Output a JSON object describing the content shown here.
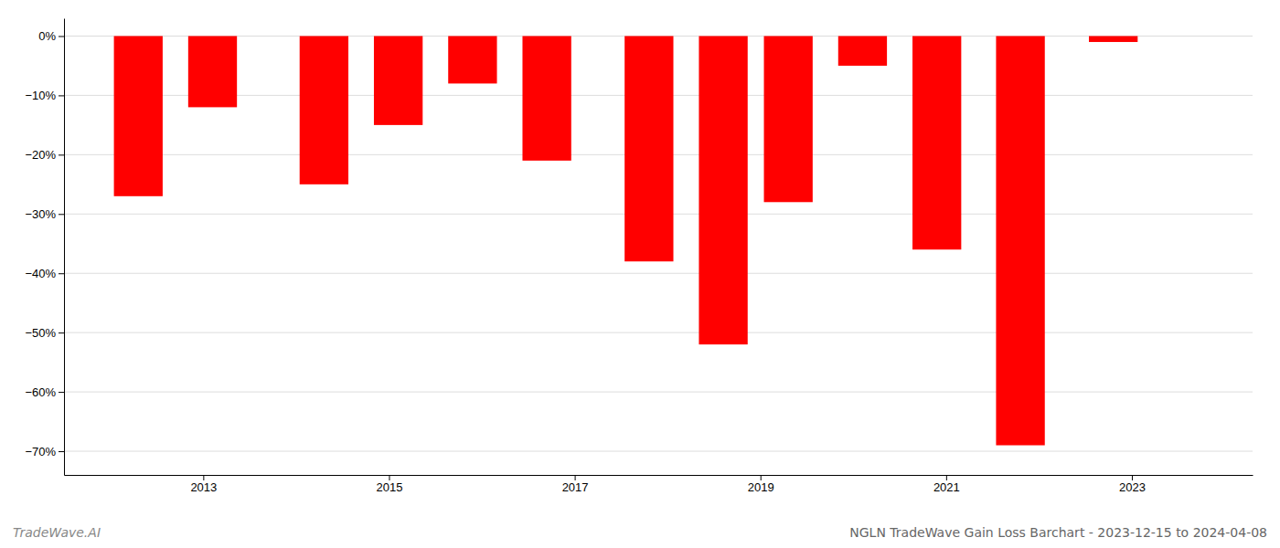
{
  "chart_data": {
    "type": "bar",
    "title": "NGLN TradeWave Gain Loss Barchart - 2023-12-15 to 2024-04-08",
    "annotations": [
      "TradeWave.AI"
    ],
    "x": [
      2012.3,
      2013.1,
      2014.3,
      2015.1,
      2015.9,
      2016.7,
      2017.8,
      2018.6,
      2019.3,
      2020.1,
      2020.9,
      2021.8,
      2022.8
    ],
    "values": [
      -27,
      -12,
      -25,
      -15,
      -8,
      -21,
      -38,
      -52,
      -28,
      -5,
      -36,
      -69,
      -1
    ],
    "color": "#ff0000",
    "xlim": [
      2011.5,
      2024.3
    ],
    "xticks": [
      2013,
      2015,
      2017,
      2019,
      2021,
      2023
    ],
    "ylim": [
      -74,
      3
    ],
    "yticks": [
      {
        "value": 0,
        "label": "0%"
      },
      {
        "value": -10,
        "label": "−10%"
      },
      {
        "value": -20,
        "label": "−20%"
      },
      {
        "value": -30,
        "label": "−30%"
      },
      {
        "value": -40,
        "label": "−40%"
      },
      {
        "value": -50,
        "label": "−50%"
      },
      {
        "value": -60,
        "label": "−60%"
      },
      {
        "value": -70,
        "label": "−70%"
      }
    ],
    "grid": true
  }
}
